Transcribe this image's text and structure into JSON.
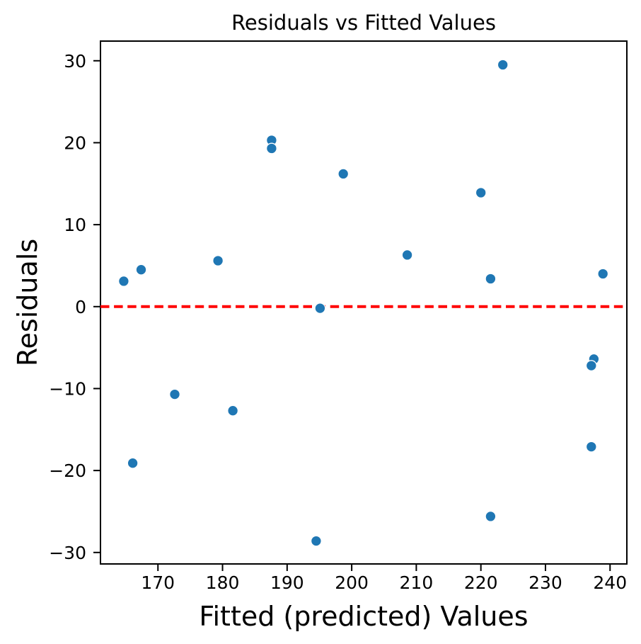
{
  "chart_data": {
    "type": "scatter",
    "title": "Residuals vs Fitted Values",
    "xlabel": "Fitted (predicted) Values",
    "ylabel": "Residuals",
    "xlim": [
      161.1,
      242.6
    ],
    "ylim": [
      -31.4,
      32.4
    ],
    "x_ticks": [
      170,
      180,
      190,
      200,
      210,
      220,
      230,
      240
    ],
    "y_ticks": [
      -30,
      -20,
      -10,
      0,
      10,
      20,
      30
    ],
    "grid": false,
    "legend": null,
    "marker_color": "#1f77b4",
    "marker_edge_color": "#ffffff",
    "axis_color": "#000000",
    "background_color": "#ffffff",
    "reference_line": {
      "y": 0,
      "color": "#ff0000",
      "style": "dashed"
    },
    "series": [
      {
        "name": "residuals",
        "points": [
          [
            164.7,
            3.1
          ],
          [
            166.1,
            -19.1
          ],
          [
            167.4,
            4.5
          ],
          [
            172.6,
            -10.7
          ],
          [
            179.3,
            5.6
          ],
          [
            181.6,
            -12.7
          ],
          [
            187.6,
            20.3
          ],
          [
            187.6,
            19.3
          ],
          [
            194.5,
            -28.6
          ],
          [
            195.1,
            -0.2
          ],
          [
            198.7,
            16.2
          ],
          [
            208.6,
            6.3
          ],
          [
            220.0,
            13.9
          ],
          [
            221.5,
            3.4
          ],
          [
            221.5,
            -25.6
          ],
          [
            223.4,
            29.5
          ],
          [
            237.5,
            -6.4
          ],
          [
            237.1,
            -7.2
          ],
          [
            237.1,
            -17.1
          ],
          [
            238.9,
            4.0
          ]
        ]
      }
    ]
  }
}
